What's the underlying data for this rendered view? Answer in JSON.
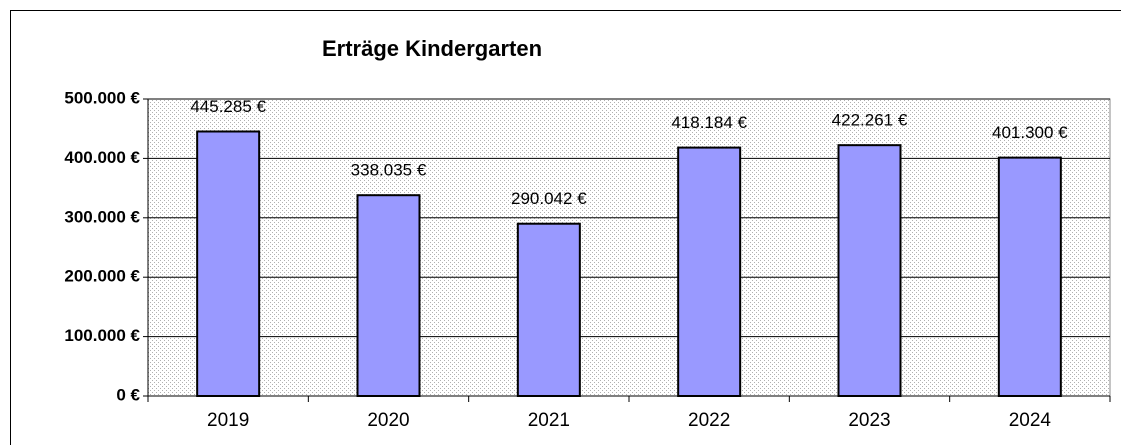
{
  "chart_data": {
    "type": "bar",
    "title": "Erträge  Kindergarten",
    "categories": [
      "2019",
      "2020",
      "2021",
      "2022",
      "2023",
      "2024"
    ],
    "values": [
      445285,
      338035,
      290042,
      418184,
      422261,
      401300
    ],
    "value_labels": [
      "445.285 €",
      "338.035 €",
      "290.042 €",
      "418.184 €",
      "422.261 €",
      "401.300 €"
    ],
    "color": "#9999ff",
    "ylim": [
      0,
      500000
    ],
    "yticks": [
      {
        "value": 0,
        "label": "0 €"
      },
      {
        "value": 100000,
        "label": "100.000 €"
      },
      {
        "value": 200000,
        "label": "200.000 €"
      },
      {
        "value": 300000,
        "label": "300.000 €"
      },
      {
        "value": 400000,
        "label": "400.000 €"
      },
      {
        "value": 500000,
        "label": "500.000 €"
      }
    ],
    "grid": true
  }
}
